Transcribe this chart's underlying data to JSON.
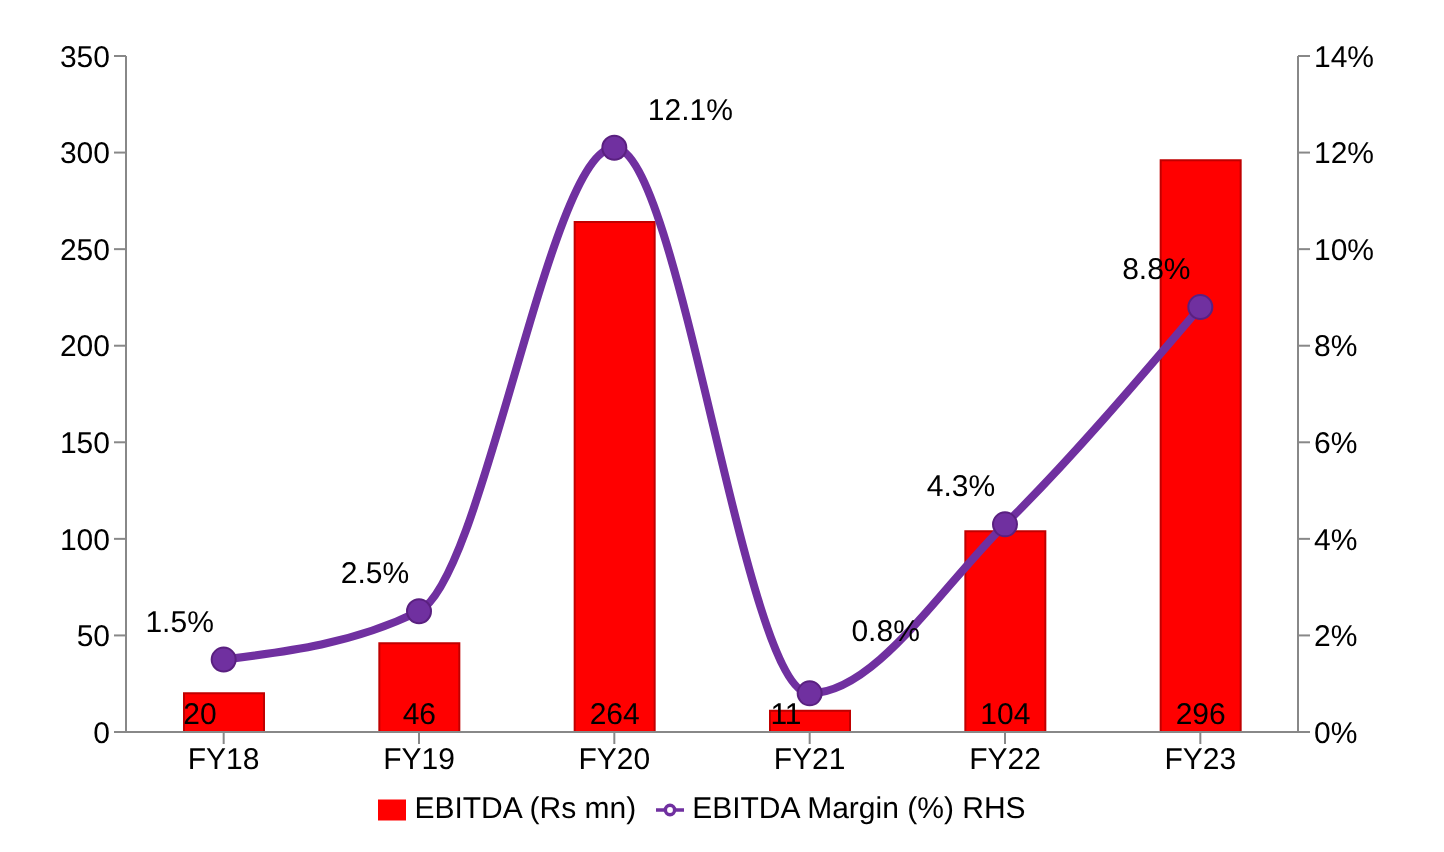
{
  "chart_data": {
    "type": "bar",
    "categories": [
      "FY18",
      "FY19",
      "FY20",
      "FY21",
      "FY22",
      "FY23"
    ],
    "series": [
      {
        "name": "EBITDA (Rs mn)",
        "color": "#ff0000",
        "values": [
          20,
          46,
          264,
          11,
          104,
          296
        ],
        "value_labels": [
          "20",
          "46",
          "264",
          "11",
          "104",
          "296"
        ]
      },
      {
        "name": "EBITDA Margin (%) RHS",
        "type": "line",
        "axis": "y2",
        "color": "#7030a0",
        "values": [
          1.5,
          2.5,
          12.1,
          0.8,
          4.3,
          8.8
        ],
        "value_labels": [
          "1.5%",
          "2.5%",
          "12.1%",
          "0.8%",
          "4.3%",
          "8.8%"
        ]
      }
    ],
    "ylim": [
      0,
      350
    ],
    "yticks": [
      0,
      50,
      100,
      150,
      200,
      250,
      300,
      350
    ],
    "y2lim": [
      0,
      14
    ],
    "y2ticks": [
      {
        "value": 0,
        "label": "0%"
      },
      {
        "value": 2,
        "label": "2%"
      },
      {
        "value": 4,
        "label": "4%"
      },
      {
        "value": 6,
        "label": "6%"
      },
      {
        "value": 8,
        "label": "8%"
      },
      {
        "value": 10,
        "label": "10%"
      },
      {
        "value": 12,
        "label": "12%"
      },
      {
        "value": 14,
        "label": "14%"
      }
    ],
    "grid": false,
    "legend": "bottom",
    "marker": "circle",
    "line_style": "solid"
  }
}
